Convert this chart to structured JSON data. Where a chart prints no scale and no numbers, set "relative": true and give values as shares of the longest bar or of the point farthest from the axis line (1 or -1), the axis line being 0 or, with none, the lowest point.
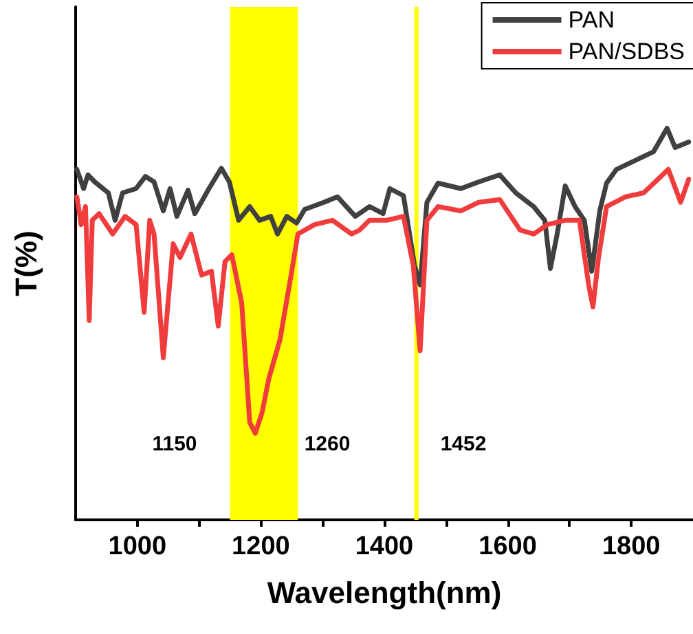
{
  "chart_data": {
    "type": "line",
    "relative": true,
    "xlabel": "Wavelength(nm)",
    "ylabel": "T(%)",
    "xlim": [
      900,
      1900
    ],
    "xticks": [
      1000,
      {
        "value": 1100,
        "label": null
      },
      1200,
      {
        "value": 1300,
        "label": null
      },
      1400,
      {
        "value": 1500,
        "label": null
      },
      1600,
      {
        "value": 1700,
        "label": null
      },
      1800
    ],
    "legend": "top right",
    "grid": false,
    "marker": "none",
    "line_style": "solid",
    "tick_labels": "x",
    "bands": [
      {
        "axis": "x",
        "from": 1150,
        "to": 1260,
        "color": "#ffff00"
      }
    ],
    "ref_lines": [
      {
        "axis": "x",
        "value": 1452,
        "color": "#ffff00"
      }
    ],
    "annotations": [
      "1150",
      "1260",
      "1452"
    ],
    "series": [
      {
        "name": "PAN",
        "color": "#404040",
        "x": [
          902,
          913,
          920,
          931,
          953,
          964,
          976,
          998,
          1013,
          1027,
          1042,
          1053,
          1064,
          1082,
          1093,
          1116,
          1136,
          1149,
          1164,
          1182,
          1198,
          1216,
          1227,
          1242,
          1258,
          1271,
          1302,
          1324,
          1353,
          1376,
          1398,
          1409,
          1431,
          1449,
          1458,
          1469,
          1487,
          1524,
          1553,
          1587,
          1613,
          1642,
          1660,
          1669,
          1680,
          1693,
          1709,
          1724,
          1736,
          1749,
          1760,
          1776,
          1804,
          1836,
          1858,
          1871,
          1893
        ],
        "values": [
          0.895,
          0.846,
          0.881,
          0.863,
          0.835,
          0.765,
          0.835,
          0.846,
          0.877,
          0.863,
          0.789,
          0.846,
          0.775,
          0.842,
          0.782,
          0.846,
          0.898,
          0.863,
          0.765,
          0.8,
          0.765,
          0.775,
          0.73,
          0.775,
          0.758,
          0.793,
          0.811,
          0.825,
          0.775,
          0.8,
          0.782,
          0.846,
          0.828,
          0.649,
          0.6,
          0.811,
          0.86,
          0.846,
          0.863,
          0.881,
          0.835,
          0.8,
          0.765,
          0.642,
          0.73,
          0.853,
          0.8,
          0.765,
          0.635,
          0.789,
          0.86,
          0.895,
          0.916,
          0.94,
          1,
          0.951,
          0.965
        ]
      },
      {
        "name": "PAN/SDBS",
        "color": "#f03c3c",
        "x": [
          902,
          909,
          916,
          922,
          927,
          938,
          960,
          980,
          998,
          1011,
          1020,
          1027,
          1042,
          1058,
          1069,
          1087,
          1104,
          1120,
          1131,
          1142,
          1153,
          1169,
          1182,
          1191,
          1202,
          1213,
          1231,
          1249,
          1260,
          1287,
          1316,
          1347,
          1360,
          1376,
          1404,
          1431,
          1447,
          1458,
          1469,
          1487,
          1524,
          1553,
          1587,
          1620,
          1642,
          1664,
          1693,
          1716,
          1731,
          1738,
          1747,
          1760,
          1791,
          1820,
          1860,
          1880,
          1893
        ],
        "values": [
          0.825,
          0.754,
          0.8,
          0.509,
          0.765,
          0.782,
          0.73,
          0.775,
          0.754,
          0.53,
          0.765,
          0.73,
          0.414,
          0.705,
          0.67,
          0.73,
          0.625,
          0.635,
          0.495,
          0.66,
          0.677,
          0.554,
          0.249,
          0.221,
          0.274,
          0.361,
          0.46,
          0.625,
          0.73,
          0.754,
          0.765,
          0.73,
          0.74,
          0.765,
          0.765,
          0.775,
          0.649,
          0.432,
          0.765,
          0.8,
          0.789,
          0.811,
          0.818,
          0.74,
          0.73,
          0.754,
          0.765,
          0.765,
          0.6,
          0.544,
          0.67,
          0.8,
          0.825,
          0.835,
          0.895,
          0.811,
          0.87
        ]
      }
    ]
  }
}
